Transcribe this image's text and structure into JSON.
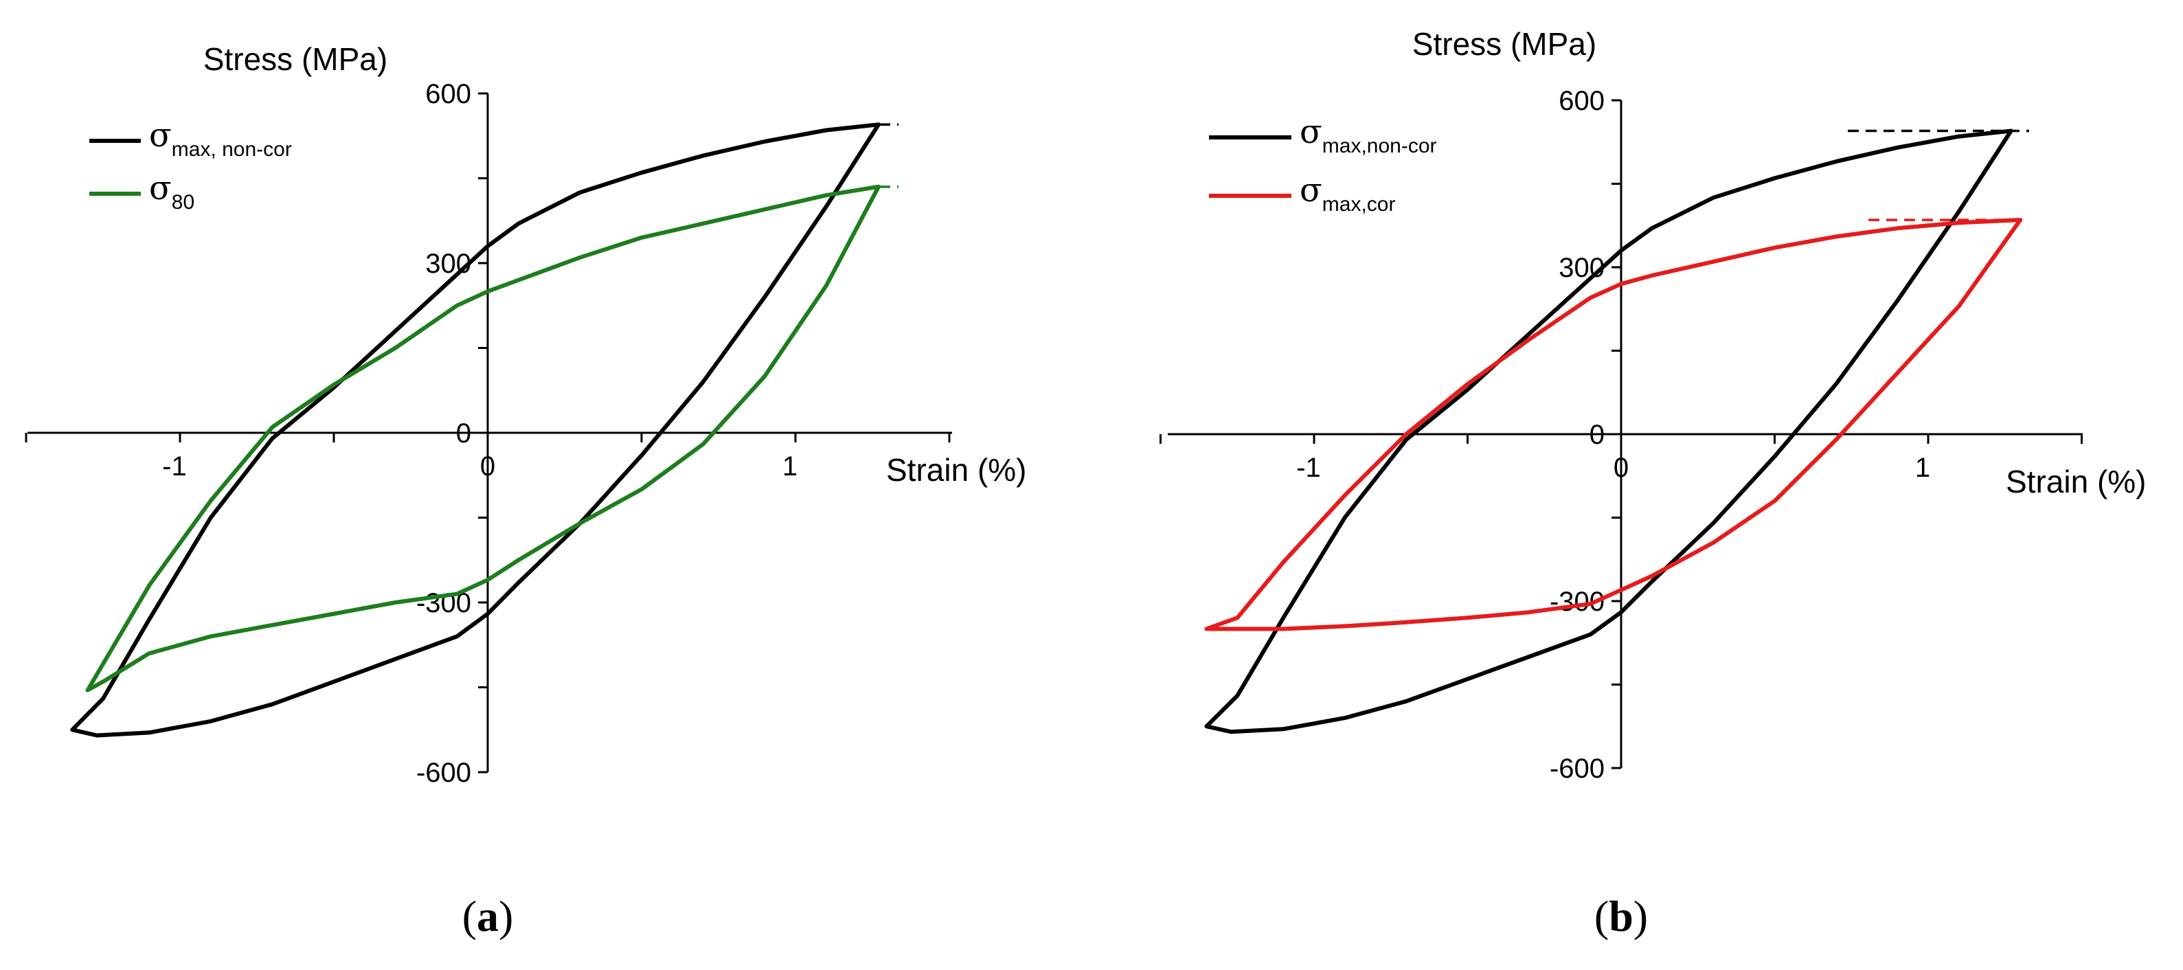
{
  "colors": {
    "black": "#000000",
    "green": "#1e7d1e",
    "red": "#e51c1c"
  },
  "chart_data": [
    {
      "type": "line",
      "panel_label": "a",
      "xlabel": "Strain (%)",
      "ylabel": "Stress (MPa)",
      "xlim": [
        -1.5,
        1.5
      ],
      "ylim": [
        -600,
        600
      ],
      "x_ticks": [
        -1,
        0,
        1
      ],
      "y_ticks": [
        600,
        300,
        0,
        -300,
        -600
      ],
      "x_tick_labels": [
        "-1",
        "0",
        "1"
      ],
      "y_tick_labels": [
        "600",
        "300",
        "0",
        "-300",
        "-600"
      ],
      "legend_position": "top-left",
      "series": [
        {
          "name_main": "σ",
          "name_sub": "max, non-cor",
          "color": "#000000",
          "max_stress": 545,
          "x": [
            1.27,
            1.1,
            0.9,
            0.7,
            0.5,
            0.3,
            0.1,
            0.0,
            -0.1,
            -0.3,
            -0.5,
            -0.7,
            -0.9,
            -1.1,
            -1.25,
            -1.35,
            -1.27,
            -1.1,
            -0.9,
            -0.7,
            -0.5,
            -0.3,
            -0.1,
            0.0,
            0.1,
            0.3,
            0.5,
            0.7,
            0.9,
            1.1,
            1.27
          ],
          "y": [
            545,
            535,
            515,
            490,
            460,
            425,
            370,
            330,
            280,
            180,
            80,
            -10,
            -150,
            -330,
            -470,
            -525,
            -535,
            -530,
            -510,
            -480,
            -440,
            -400,
            -360,
            -320,
            -265,
            -160,
            -40,
            90,
            240,
            400,
            545
          ]
        },
        {
          "name_main": "σ",
          "name_sub": "80",
          "color": "#1e7d1e",
          "max_stress": 435,
          "x": [
            1.27,
            1.1,
            0.9,
            0.7,
            0.5,
            0.3,
            0.1,
            0.0,
            -0.1,
            -0.3,
            -0.5,
            -0.7,
            -0.9,
            -1.1,
            -1.3,
            -1.25,
            -1.1,
            -0.9,
            -0.7,
            -0.5,
            -0.3,
            -0.1,
            0.0,
            0.1,
            0.3,
            0.5,
            0.7,
            0.9,
            1.1,
            1.27
          ],
          "y": [
            435,
            420,
            395,
            370,
            345,
            310,
            270,
            250,
            225,
            150,
            85,
            10,
            -120,
            -270,
            -455,
            -440,
            -390,
            -360,
            -340,
            -320,
            -300,
            -285,
            -260,
            -225,
            -160,
            -100,
            -20,
            100,
            260,
            435
          ]
        }
      ]
    },
    {
      "type": "line",
      "panel_label": "b",
      "xlabel": "Strain (%)",
      "ylabel": "Stress (MPa)",
      "xlim": [
        -1.5,
        1.5
      ],
      "ylim": [
        -600,
        600
      ],
      "x_ticks": [
        -1,
        0,
        1
      ],
      "y_ticks": [
        600,
        300,
        0,
        -300,
        -600
      ],
      "x_tick_labels": [
        "-1",
        "0",
        "1"
      ],
      "y_tick_labels": [
        "600",
        "300",
        "0",
        "-300",
        "-600"
      ],
      "legend_position": "top-left",
      "series": [
        {
          "name_main": "σ",
          "name_sub": "max,non-cor",
          "color": "#000000",
          "max_stress": 545,
          "x": [
            1.27,
            1.1,
            0.9,
            0.7,
            0.5,
            0.3,
            0.1,
            0.0,
            -0.1,
            -0.3,
            -0.5,
            -0.7,
            -0.9,
            -1.1,
            -1.25,
            -1.35,
            -1.27,
            -1.1,
            -0.9,
            -0.7,
            -0.5,
            -0.3,
            -0.1,
            0.0,
            0.1,
            0.3,
            0.5,
            0.7,
            0.9,
            1.1,
            1.27
          ],
          "y": [
            545,
            535,
            515,
            490,
            460,
            425,
            370,
            330,
            280,
            180,
            80,
            -10,
            -150,
            -330,
            -470,
            -525,
            -535,
            -530,
            -510,
            -480,
            -440,
            -400,
            -360,
            -320,
            -265,
            -160,
            -40,
            90,
            240,
            400,
            545
          ]
        },
        {
          "name_main": "σ",
          "name_sub": "max,cor",
          "color": "#e51c1c",
          "max_stress": 385,
          "x": [
            1.3,
            1.1,
            0.9,
            0.7,
            0.5,
            0.3,
            0.1,
            0.0,
            -0.1,
            -0.3,
            -0.5,
            -0.7,
            -0.9,
            -1.1,
            -1.25,
            -1.35,
            -1.27,
            -1.1,
            -0.9,
            -0.7,
            -0.5,
            -0.3,
            -0.1,
            0.0,
            0.1,
            0.3,
            0.5,
            0.7,
            0.9,
            1.1,
            1.3
          ],
          "y": [
            385,
            380,
            370,
            355,
            335,
            310,
            285,
            270,
            245,
            170,
            90,
            0,
            -110,
            -230,
            -330,
            -350,
            -350,
            -350,
            -345,
            -338,
            -330,
            -320,
            -305,
            -280,
            -255,
            -195,
            -120,
            -10,
            110,
            230,
            385
          ]
        }
      ]
    }
  ]
}
